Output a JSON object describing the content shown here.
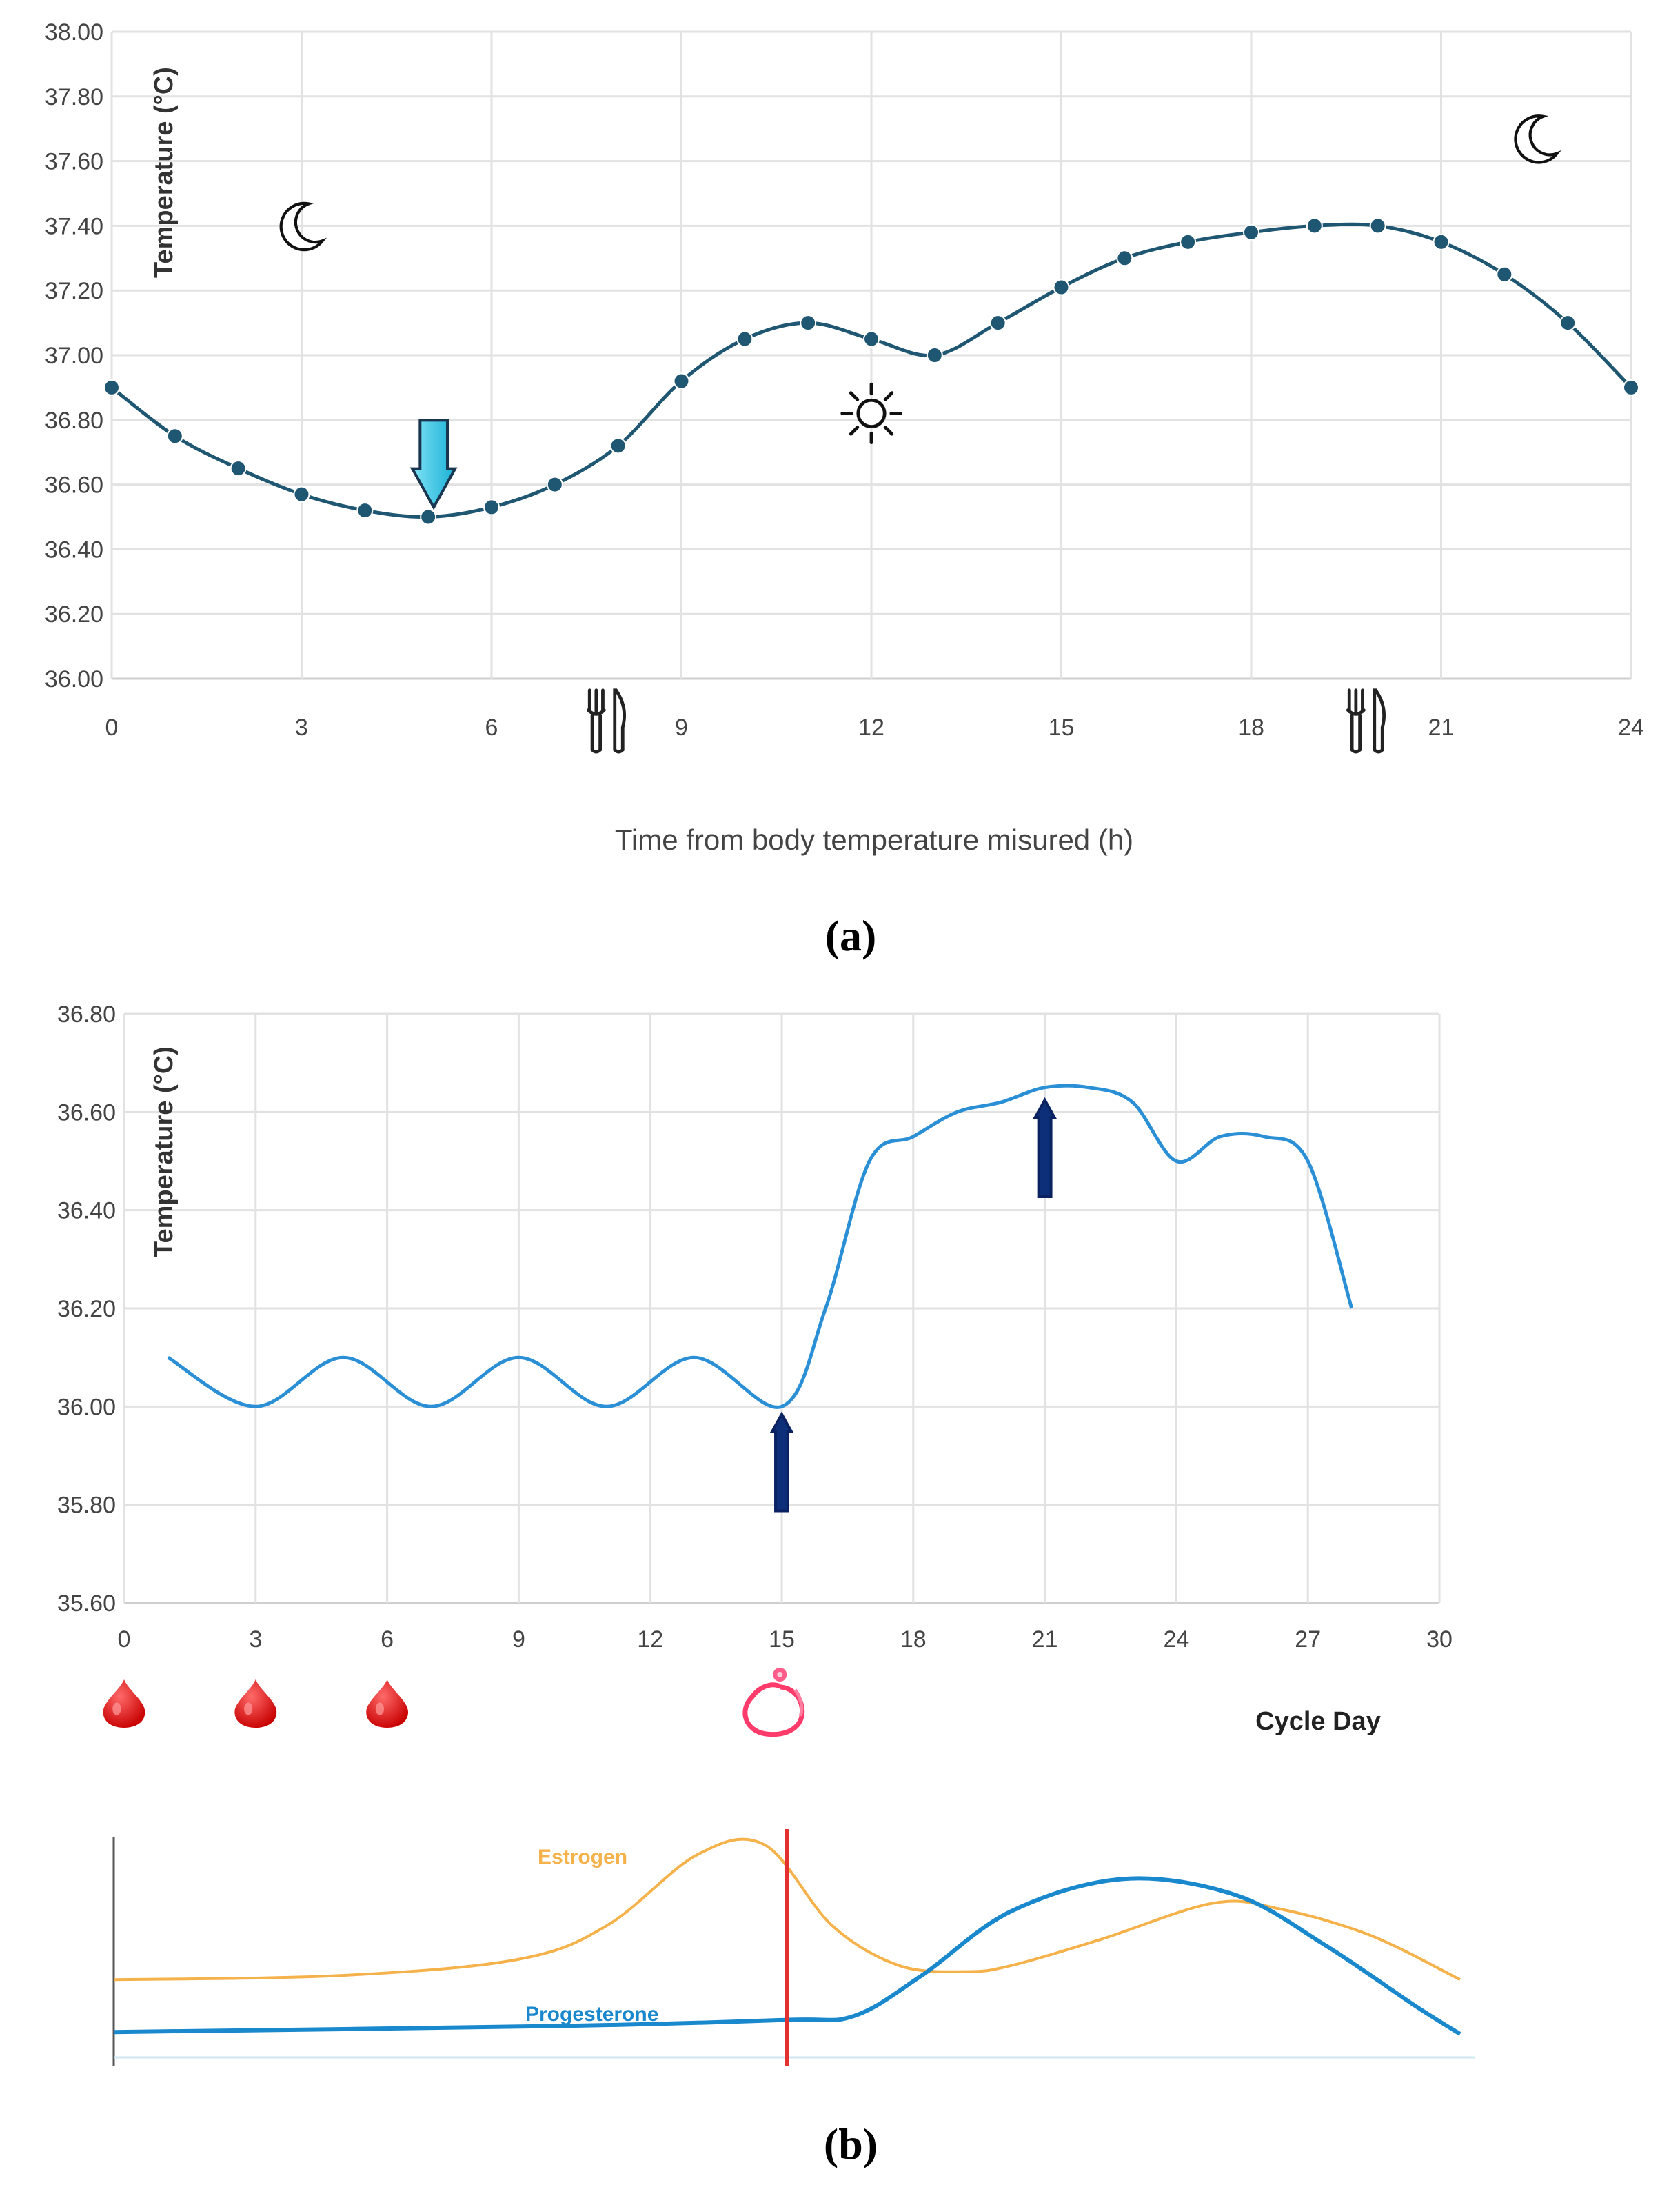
{
  "chart_data": [
    {
      "type": "line",
      "panel_label": "(a)",
      "xlabel": "Time from body temperature misured (h)",
      "ylabel": "Temperature (°C)",
      "xlim": [
        0,
        24
      ],
      "ylim": [
        36.0,
        38.0
      ],
      "x_ticks": [
        "0",
        "3",
        "6",
        "9",
        "12",
        "15",
        "18",
        "21",
        "24"
      ],
      "y_ticks": [
        "36.00",
        "36.20",
        "36.40",
        "36.60",
        "36.80",
        "37.00",
        "37.20",
        "37.40",
        "37.60",
        "37.80",
        "38.00"
      ],
      "grid": true,
      "markers": true,
      "color": "#1f5672",
      "x": [
        0,
        1,
        2,
        3,
        4,
        5,
        6,
        7,
        8,
        9,
        10,
        11,
        12,
        13,
        14,
        15,
        16,
        17,
        18,
        19,
        20,
        21,
        22,
        23,
        24
      ],
      "values": [
        36.9,
        36.75,
        36.65,
        36.57,
        36.52,
        36.5,
        36.53,
        36.6,
        36.72,
        36.92,
        37.05,
        37.1,
        37.05,
        37.0,
        37.1,
        37.21,
        37.3,
        37.35,
        37.38,
        37.4,
        37.4,
        37.35,
        37.25,
        37.1,
        36.9
      ],
      "annotations": [
        {
          "icon": "moon-icon",
          "x": 3,
          "y": 37.4
        },
        {
          "icon": "down-arrow-icon",
          "x": 5,
          "y": 36.72
        },
        {
          "icon": "sun-icon",
          "x": 12,
          "y": 36.82
        },
        {
          "icon": "moon-icon",
          "x": 22.5,
          "y": 37.67
        },
        {
          "icon": "fork-knife-icon",
          "x": 7.8,
          "y": 35.87
        },
        {
          "icon": "fork-knife-icon",
          "x": 19.8,
          "y": 35.87
        }
      ]
    },
    {
      "type": "line",
      "panel_label": "(b)",
      "xlabel": "Cycle Day",
      "ylabel": "Temperature (°C)",
      "xlim": [
        0,
        30
      ],
      "ylim": [
        35.6,
        36.8
      ],
      "x_ticks": [
        "0",
        "3",
        "6",
        "9",
        "12",
        "15",
        "18",
        "21",
        "24",
        "27",
        "30"
      ],
      "y_ticks": [
        "35.60",
        "35.80",
        "36.00",
        "36.20",
        "36.40",
        "36.60",
        "36.80"
      ],
      "grid": true,
      "color": "#2b8fd6",
      "x": [
        1,
        3,
        5,
        7,
        9,
        11,
        13,
        15,
        16,
        17,
        18,
        19,
        20,
        21,
        22,
        23,
        24,
        25,
        26,
        27,
        28
      ],
      "values": [
        36.1,
        36.0,
        36.1,
        36.0,
        36.1,
        36.0,
        36.1,
        36.0,
        36.2,
        36.5,
        36.55,
        36.6,
        36.62,
        36.65,
        36.65,
        36.62,
        36.5,
        36.55,
        36.55,
        36.5,
        36.2
      ],
      "annotations": [
        {
          "icon": "up-arrow-icon",
          "x": 15,
          "y": 35.99
        },
        {
          "icon": "up-arrow-icon",
          "x": 21,
          "y": 36.63
        },
        {
          "icon": "blood-drop-icon",
          "x": 0
        },
        {
          "icon": "blood-drop-icon",
          "x": 3
        },
        {
          "icon": "blood-drop-icon",
          "x": 6
        },
        {
          "icon": "ovulation-egg-icon",
          "x": 14.8
        }
      ]
    },
    {
      "type": "line",
      "panel_label": "(b)",
      "xlim": [
        0,
        30
      ],
      "ylim": [
        0,
        1
      ],
      "ovulation_day": 15,
      "ovulation_color": "#e53030",
      "series": [
        {
          "name": "Estrogen",
          "color": "#f5b14a",
          "x": [
            0,
            5,
            9,
            11,
            13,
            14.5,
            16,
            17.5,
            19,
            20,
            22,
            24.5,
            26,
            28,
            30
          ],
          "values": [
            0.28,
            0.3,
            0.38,
            0.55,
            0.9,
            0.95,
            0.55,
            0.35,
            0.32,
            0.35,
            0.48,
            0.66,
            0.63,
            0.5,
            0.28
          ]
        },
        {
          "name": "Progesterone",
          "color": "#1a88cc",
          "x": [
            0,
            10,
            15,
            16.5,
            18,
            20,
            22.5,
            25,
            27,
            29,
            30
          ],
          "values": [
            0.02,
            0.05,
            0.08,
            0.1,
            0.3,
            0.62,
            0.78,
            0.7,
            0.45,
            0.15,
            0.01
          ]
        }
      ]
    }
  ]
}
